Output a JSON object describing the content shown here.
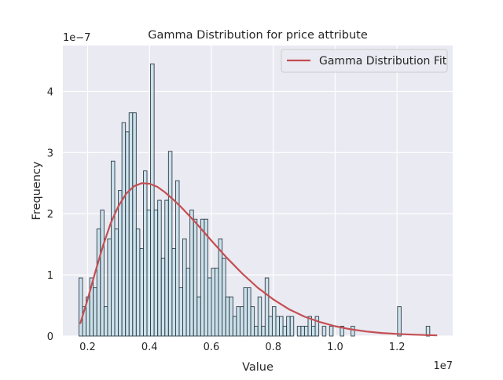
{
  "chart_data": {
    "type": "bar",
    "title": "Gamma Distribution for price attribute",
    "xlabel": "Value",
    "ylabel": "Frequency",
    "x_offset_label": "1e7",
    "y_offset_label": "1e−7",
    "x_scale": 10000000,
    "y_scale": 1e-07,
    "xlim": [
      1.2,
      13.8
    ],
    "ylim": [
      0,
      4.75
    ],
    "xticks": [
      {
        "value": 2,
        "label": "0.2"
      },
      {
        "value": 4,
        "label": "0.4"
      },
      {
        "value": 6,
        "label": "0.6"
      },
      {
        "value": 8,
        "label": "0.8"
      },
      {
        "value": 10,
        "label": "1.0"
      },
      {
        "value": 12,
        "label": "1.2"
      }
    ],
    "yticks": [
      {
        "value": 0,
        "label": "0"
      },
      {
        "value": 1,
        "label": "1"
      },
      {
        "value": 2,
        "label": "2"
      },
      {
        "value": 3,
        "label": "3"
      },
      {
        "value": 4,
        "label": "4"
      }
    ],
    "grid": true,
    "legend_position": "top-right",
    "histogram": {
      "bin_start": 1.72,
      "bin_width": 0.1157,
      "heights": [
        0.95,
        0.48,
        0.64,
        0.95,
        0.79,
        1.75,
        2.06,
        0.48,
        1.59,
        2.86,
        1.75,
        2.38,
        3.49,
        3.34,
        3.65,
        3.65,
        1.75,
        1.43,
        2.7,
        2.06,
        4.45,
        2.06,
        2.22,
        1.27,
        2.22,
        3.02,
        1.43,
        2.54,
        0.79,
        1.59,
        1.11,
        2.06,
        1.91,
        0.64,
        1.91,
        1.91,
        0.95,
        1.11,
        1.11,
        1.59,
        1.27,
        0.64,
        0.64,
        0.32,
        0.48,
        0.48,
        0.79,
        0.79,
        0.48,
        0.16,
        0.64,
        0.16,
        0.95,
        0.32,
        0.48,
        0.32,
        0.32,
        0.16,
        0.32,
        0.32,
        0.0,
        0.16,
        0.16,
        0.16,
        0.32,
        0.16,
        0.32,
        0.0,
        0.16,
        0.0,
        0.16,
        0.0,
        0.0,
        0.16,
        0.0,
        0.0,
        0.16,
        0.0,
        0.0,
        0.0,
        0.0,
        0.0,
        0.0,
        0.0,
        0.0,
        0.0,
        0.0,
        0.0,
        0.0,
        0.48,
        0.0,
        0.0,
        0.0,
        0.0,
        0.0,
        0.0,
        0.0,
        0.16
      ],
      "fill_color": "#add8e6",
      "edge_color": "#2f3e46",
      "opacity": 0.5
    },
    "fit_curve": {
      "name": "Gamma Distribution Fit",
      "color": "#c44e52",
      "x": [
        1.76,
        2.0,
        2.25,
        2.5,
        2.75,
        3.0,
        3.25,
        3.5,
        3.75,
        4.0,
        4.25,
        4.5,
        4.75,
        5.0,
        5.5,
        6.0,
        6.5,
        7.0,
        7.5,
        8.0,
        8.5,
        9.0,
        9.5,
        10.0,
        10.5,
        11.0,
        11.5,
        12.0,
        12.5,
        13.3
      ],
      "y": [
        0.2,
        0.6,
        1.05,
        1.48,
        1.85,
        2.13,
        2.33,
        2.45,
        2.5,
        2.49,
        2.44,
        2.35,
        2.24,
        2.12,
        1.85,
        1.56,
        1.28,
        1.02,
        0.79,
        0.6,
        0.44,
        0.32,
        0.23,
        0.16,
        0.11,
        0.075,
        0.05,
        0.035,
        0.023,
        0.01
      ]
    },
    "colors": {
      "axes_background": "#eaeaf2",
      "grid": "#ffffff",
      "text": "#262626"
    }
  }
}
